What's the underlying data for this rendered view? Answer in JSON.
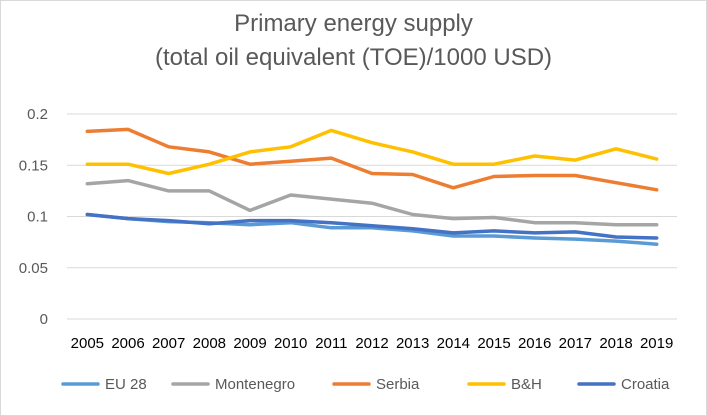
{
  "chart_data": {
    "type": "line",
    "title": "Primary energy supply",
    "subtitle": "(total oil equivalent (TOE)/1000 USD)",
    "xlabel": "",
    "ylabel": "",
    "x": [
      "2005",
      "2006",
      "2007",
      "2008",
      "2009",
      "2010",
      "2011",
      "2012",
      "2013",
      "2014",
      "2015",
      "2016",
      "2017",
      "2018",
      "2019"
    ],
    "ylim": [
      0,
      0.2
    ],
    "yticks": [
      0,
      0.05,
      0.1,
      0.15,
      0.2
    ],
    "ytick_labels": [
      "0",
      "0.05",
      "0.1",
      "0.15",
      "0.2"
    ],
    "grid": "horizontal",
    "legend": "bottom",
    "series": [
      {
        "name": "EU 28",
        "color": "#5b9bd5",
        "values": [
          0.102,
          0.098,
          0.095,
          0.094,
          0.092,
          0.094,
          0.089,
          0.089,
          0.086,
          0.081,
          0.081,
          0.079,
          0.078,
          0.076,
          0.073
        ]
      },
      {
        "name": "Montenegro",
        "color": "#a5a5a5",
        "values": [
          0.132,
          0.135,
          0.125,
          0.125,
          0.106,
          0.121,
          0.117,
          0.113,
          0.102,
          0.098,
          0.099,
          0.094,
          0.094,
          0.092,
          0.092
        ]
      },
      {
        "name": "Serbia",
        "color": "#ed7d31",
        "values": [
          0.183,
          0.185,
          0.168,
          0.163,
          0.151,
          0.154,
          0.157,
          0.142,
          0.141,
          0.128,
          0.139,
          0.14,
          0.14,
          0.133,
          0.126
        ]
      },
      {
        "name": "B&H",
        "color": "#ffc000",
        "values": [
          0.151,
          0.151,
          0.142,
          0.151,
          0.163,
          0.168,
          0.184,
          0.172,
          0.163,
          0.151,
          0.151,
          0.159,
          0.155,
          0.166,
          0.156
        ]
      },
      {
        "name": "Croatia",
        "color": "#4472c4",
        "values": [
          0.102,
          0.098,
          0.096,
          0.093,
          0.096,
          0.096,
          0.094,
          0.091,
          0.088,
          0.084,
          0.086,
          0.084,
          0.085,
          0.08,
          0.079
        ]
      }
    ]
  }
}
